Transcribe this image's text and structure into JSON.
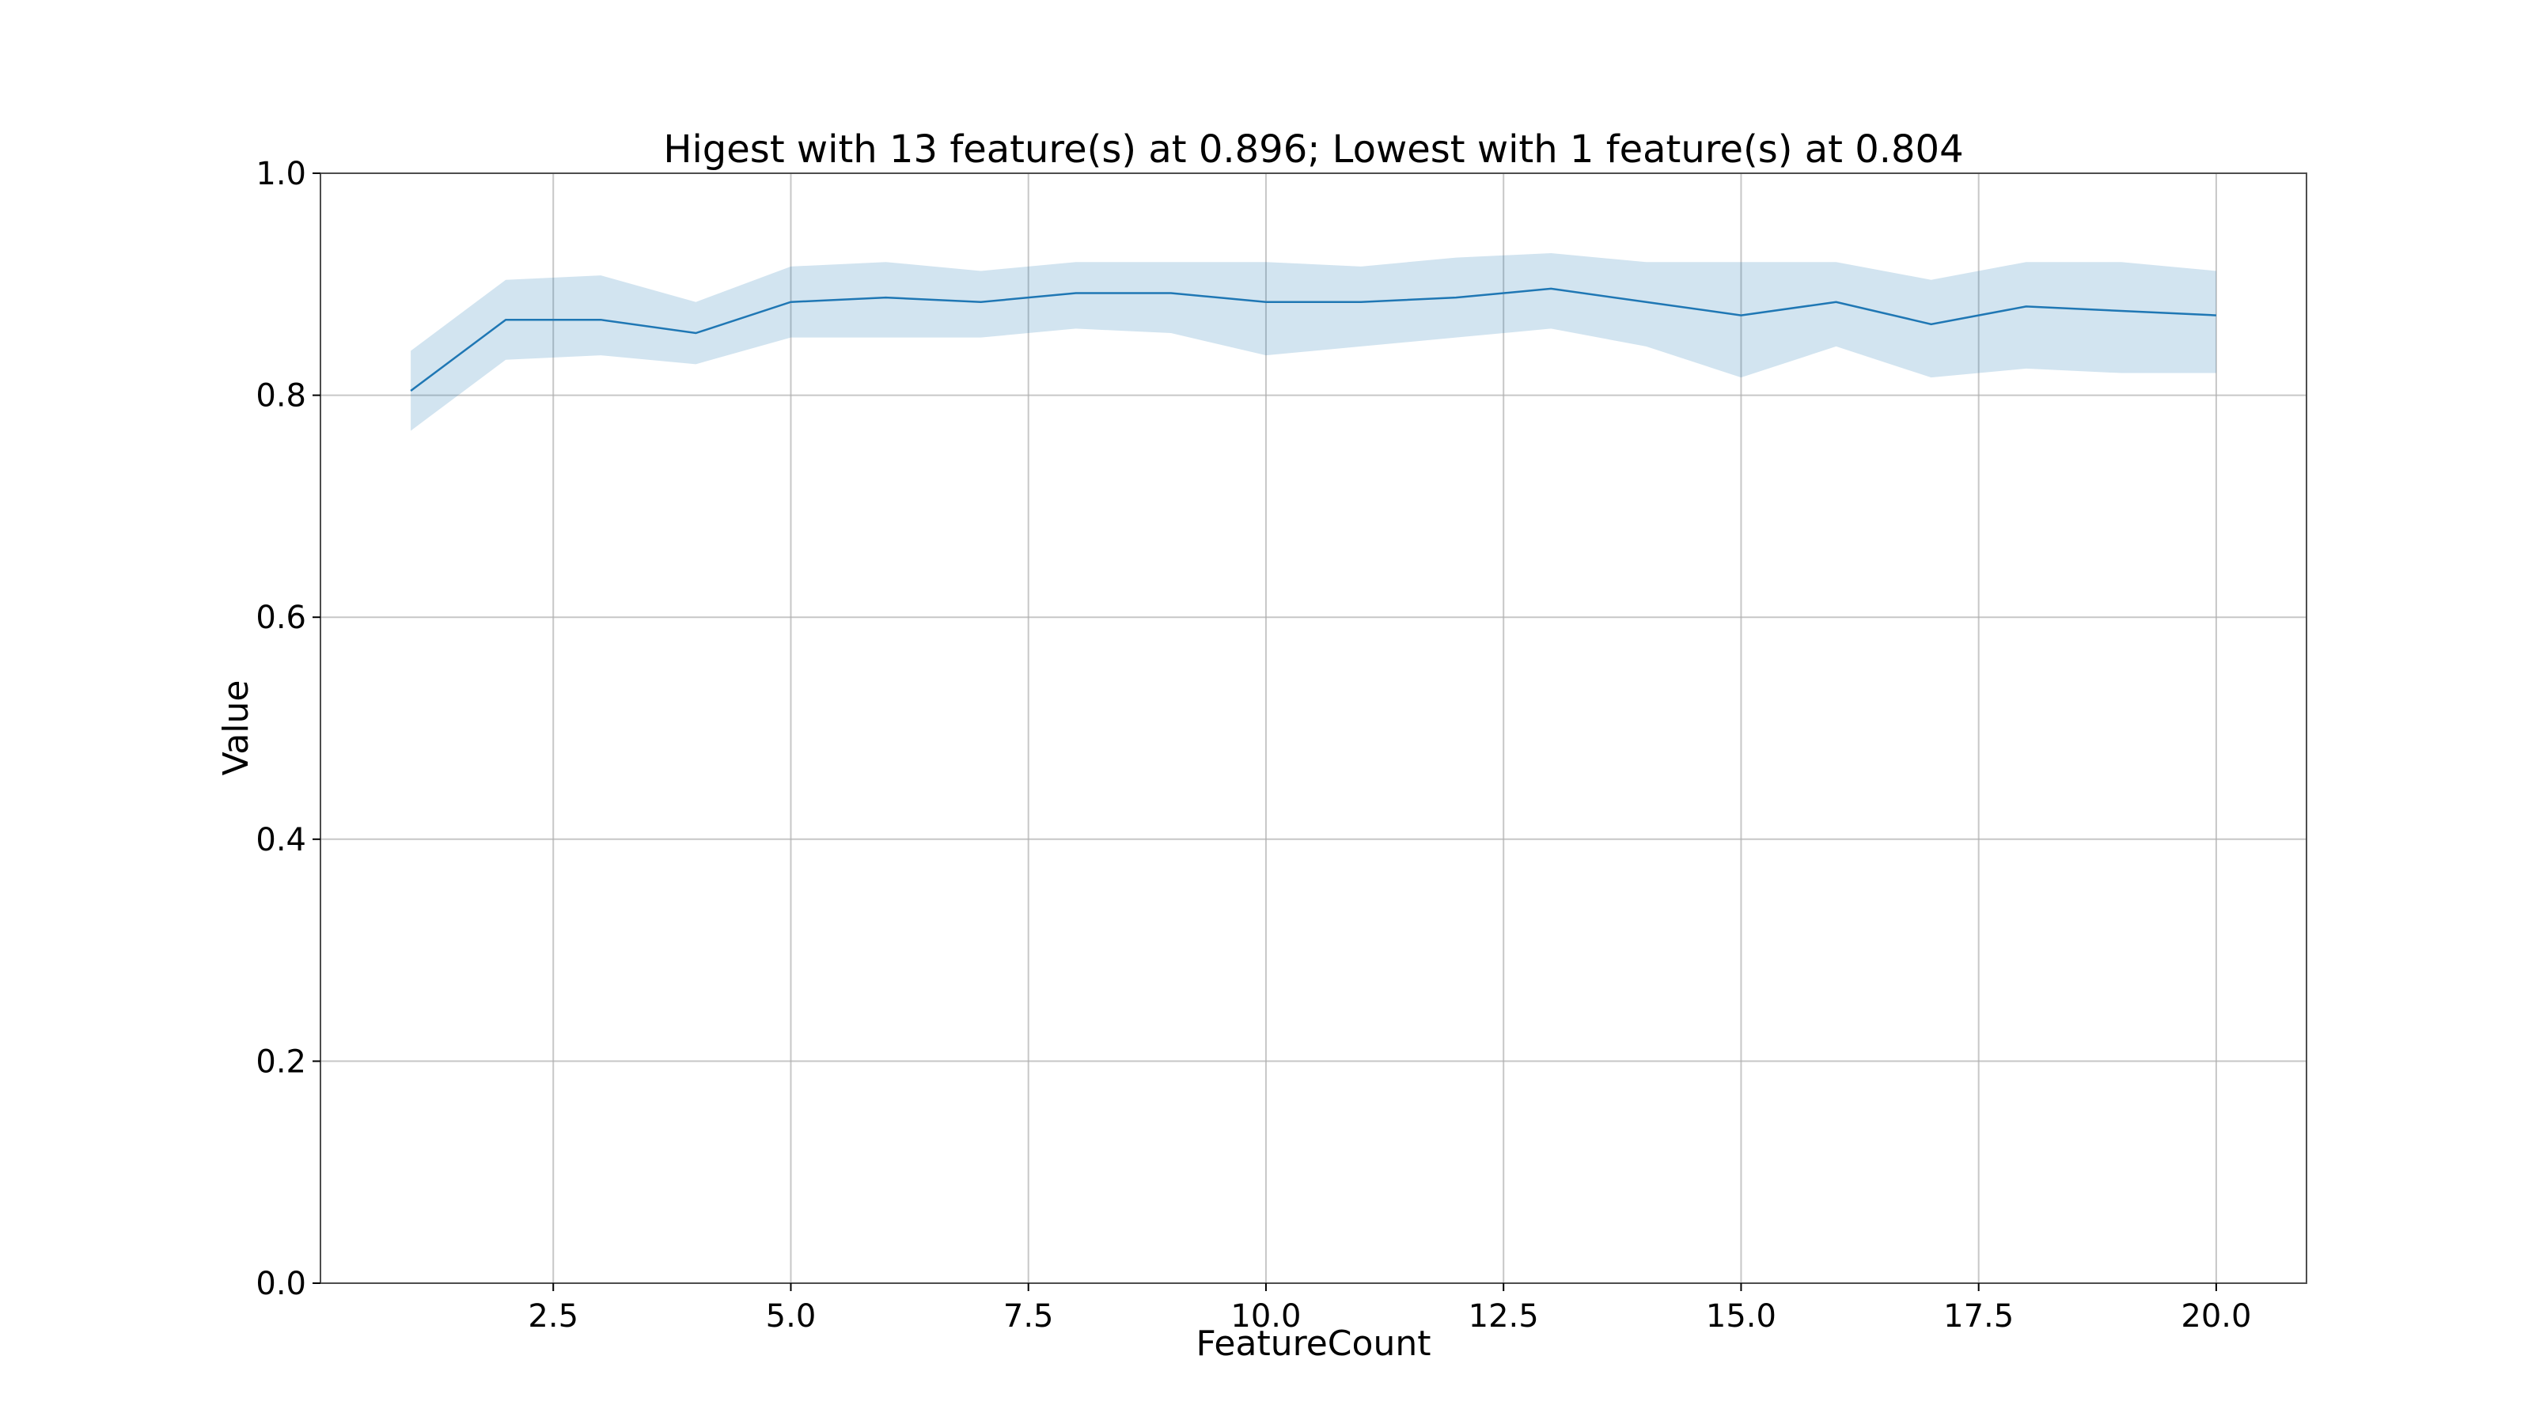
{
  "chart_data": {
    "type": "line",
    "title": "Higest with 13 feature(s) at 0.896; Lowest with 1 feature(s) at 0.804",
    "xlabel": "FeatureCount",
    "ylabel": "Value",
    "xlim": [
      0.05,
      20.95
    ],
    "ylim": [
      0.0,
      1.0
    ],
    "grid": true,
    "x_ticks": [
      2.5,
      5.0,
      7.5,
      10.0,
      12.5,
      15.0,
      17.5,
      20.0
    ],
    "x_tick_labels": [
      "2.5",
      "5.0",
      "7.5",
      "10.0",
      "12.5",
      "15.0",
      "17.5",
      "20.0"
    ],
    "y_ticks": [
      0.0,
      0.2,
      0.4,
      0.6,
      0.8,
      1.0
    ],
    "y_tick_labels": [
      "0.0",
      "0.2",
      "0.4",
      "0.6",
      "0.8",
      "1.0"
    ],
    "series": [
      {
        "color": "#1f77b4",
        "band_color": "#1f77b4",
        "x": [
          1,
          2,
          3,
          4,
          5,
          6,
          7,
          8,
          9,
          10,
          11,
          12,
          13,
          14,
          15,
          16,
          17,
          18,
          19,
          20
        ],
        "y": [
          0.804,
          0.868,
          0.868,
          0.856,
          0.884,
          0.888,
          0.884,
          0.892,
          0.892,
          0.884,
          0.884,
          0.888,
          0.896,
          0.884,
          0.872,
          0.884,
          0.864,
          0.88,
          0.876,
          0.872
        ],
        "upper": [
          0.84,
          0.904,
          0.908,
          0.884,
          0.916,
          0.92,
          0.912,
          0.92,
          0.92,
          0.92,
          0.916,
          0.924,
          0.928,
          0.92,
          0.92,
          0.92,
          0.904,
          0.92,
          0.92,
          0.912
        ],
        "lower": [
          0.768,
          0.832,
          0.836,
          0.828,
          0.852,
          0.852,
          0.852,
          0.86,
          0.856,
          0.836,
          0.844,
          0.852,
          0.86,
          0.844,
          0.816,
          0.844,
          0.816,
          0.824,
          0.82,
          0.82
        ]
      }
    ]
  }
}
